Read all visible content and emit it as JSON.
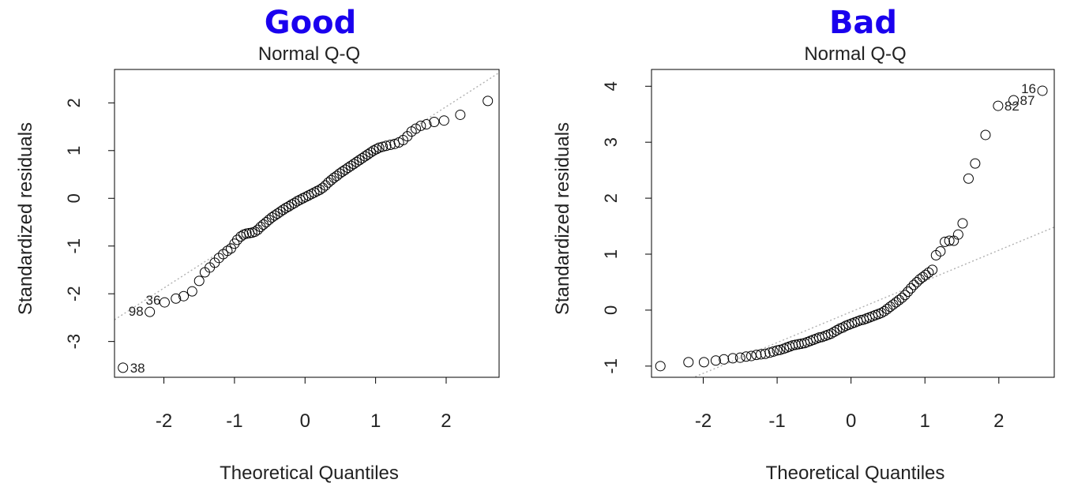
{
  "colors": {
    "heading": "#1a00ee",
    "points": "#000000",
    "refline": "#b0b0b0",
    "text": "#222222"
  },
  "chart_data": [
    {
      "heading": "Good",
      "type": "scatter",
      "title": "Normal Q-Q",
      "xlabel": "Theoretical Quantiles",
      "ylabel": "Standardized residuals",
      "xlim": [
        -2.7,
        2.75
      ],
      "ylim": [
        -3.75,
        2.7
      ],
      "xticks": [
        -2,
        -1,
        0,
        1,
        2
      ],
      "yticks": [
        -3,
        -2,
        -1,
        0,
        1,
        2
      ],
      "reference_line": {
        "intercept": 0.02,
        "slope": 0.95
      },
      "labeled_points": [
        {
          "label": "38",
          "x": -2.58,
          "y": -3.55
        },
        {
          "label": "98",
          "x": -2.2,
          "y": -2.38
        },
        {
          "label": "36",
          "x": -1.99,
          "y": -2.18
        }
      ],
      "points": [
        [
          -2.58,
          -3.55
        ],
        [
          -2.2,
          -2.38
        ],
        [
          -1.99,
          -2.18
        ],
        [
          -1.83,
          -2.1
        ],
        [
          -1.72,
          -2.05
        ],
        [
          -1.6,
          -1.95
        ],
        [
          -1.5,
          -1.73
        ],
        [
          -1.42,
          -1.55
        ],
        [
          -1.35,
          -1.45
        ],
        [
          -1.28,
          -1.35
        ],
        [
          -1.22,
          -1.25
        ],
        [
          -1.16,
          -1.17
        ],
        [
          -1.1,
          -1.1
        ],
        [
          -1.05,
          -1.05
        ],
        [
          -1.0,
          -0.95
        ],
        [
          -0.96,
          -0.87
        ],
        [
          -0.91,
          -0.8
        ],
        [
          -0.87,
          -0.76
        ],
        [
          -0.83,
          -0.74
        ],
        [
          -0.79,
          -0.73
        ],
        [
          -0.75,
          -0.72
        ],
        [
          -0.71,
          -0.7
        ],
        [
          -0.67,
          -0.66
        ],
        [
          -0.63,
          -0.6
        ],
        [
          -0.59,
          -0.55
        ],
        [
          -0.55,
          -0.5
        ],
        [
          -0.51,
          -0.45
        ],
        [
          -0.47,
          -0.4
        ],
        [
          -0.43,
          -0.36
        ],
        [
          -0.39,
          -0.32
        ],
        [
          -0.35,
          -0.28
        ],
        [
          -0.31,
          -0.24
        ],
        [
          -0.27,
          -0.2
        ],
        [
          -0.23,
          -0.17
        ],
        [
          -0.19,
          -0.13
        ],
        [
          -0.15,
          -0.1
        ],
        [
          -0.11,
          -0.06
        ],
        [
          -0.07,
          -0.03
        ],
        [
          -0.03,
          0.0
        ],
        [
          0.01,
          0.03
        ],
        [
          0.05,
          0.06
        ],
        [
          0.09,
          0.09
        ],
        [
          0.13,
          0.12
        ],
        [
          0.17,
          0.15
        ],
        [
          0.21,
          0.18
        ],
        [
          0.25,
          0.22
        ],
        [
          0.29,
          0.27
        ],
        [
          0.33,
          0.33
        ],
        [
          0.37,
          0.38
        ],
        [
          0.41,
          0.43
        ],
        [
          0.45,
          0.47
        ],
        [
          0.49,
          0.52
        ],
        [
          0.53,
          0.56
        ],
        [
          0.57,
          0.6
        ],
        [
          0.61,
          0.64
        ],
        [
          0.65,
          0.68
        ],
        [
          0.69,
          0.72
        ],
        [
          0.73,
          0.76
        ],
        [
          0.77,
          0.8
        ],
        [
          0.81,
          0.84
        ],
        [
          0.85,
          0.88
        ],
        [
          0.89,
          0.92
        ],
        [
          0.93,
          0.96
        ],
        [
          0.97,
          1.0
        ],
        [
          1.01,
          1.03
        ],
        [
          1.05,
          1.06
        ],
        [
          1.1,
          1.08
        ],
        [
          1.15,
          1.1
        ],
        [
          1.21,
          1.12
        ],
        [
          1.27,
          1.14
        ],
        [
          1.33,
          1.17
        ],
        [
          1.39,
          1.22
        ],
        [
          1.45,
          1.3
        ],
        [
          1.51,
          1.4
        ],
        [
          1.57,
          1.46
        ],
        [
          1.64,
          1.52
        ],
        [
          1.72,
          1.55
        ],
        [
          1.83,
          1.6
        ],
        [
          1.97,
          1.63
        ],
        [
          2.2,
          1.75
        ],
        [
          2.59,
          2.04
        ]
      ]
    },
    {
      "heading": "Bad",
      "type": "scatter",
      "title": "Normal Q-Q",
      "xlabel": "Theoretical Quantiles",
      "ylabel": "Standardized residuals",
      "xlim": [
        -2.7,
        2.75
      ],
      "ylim": [
        -1.2,
        4.3
      ],
      "xticks": [
        -2,
        -1,
        0,
        1,
        2
      ],
      "yticks": [
        -1,
        0,
        1,
        2,
        3,
        4
      ],
      "reference_line": {
        "intercept": -0.03,
        "slope": 0.55
      },
      "labeled_points": [
        {
          "label": "16",
          "x": 2.59,
          "y": 3.92
        },
        {
          "label": "87",
          "x": 2.2,
          "y": 3.75
        },
        {
          "label": "82",
          "x": 1.99,
          "y": 3.65
        }
      ],
      "points": [
        [
          -2.58,
          -1.0
        ],
        [
          -2.2,
          -0.93
        ],
        [
          -1.99,
          -0.93
        ],
        [
          -1.83,
          -0.9
        ],
        [
          -1.72,
          -0.88
        ],
        [
          -1.6,
          -0.86
        ],
        [
          -1.5,
          -0.85
        ],
        [
          -1.42,
          -0.83
        ],
        [
          -1.35,
          -0.82
        ],
        [
          -1.28,
          -0.8
        ],
        [
          -1.22,
          -0.79
        ],
        [
          -1.16,
          -0.78
        ],
        [
          -1.1,
          -0.76
        ],
        [
          -1.05,
          -0.74
        ],
        [
          -1.0,
          -0.72
        ],
        [
          -0.96,
          -0.71
        ],
        [
          -0.91,
          -0.69
        ],
        [
          -0.87,
          -0.67
        ],
        [
          -0.83,
          -0.65
        ],
        [
          -0.79,
          -0.63
        ],
        [
          -0.75,
          -0.62
        ],
        [
          -0.71,
          -0.61
        ],
        [
          -0.67,
          -0.6
        ],
        [
          -0.63,
          -0.59
        ],
        [
          -0.59,
          -0.57
        ],
        [
          -0.55,
          -0.55
        ],
        [
          -0.51,
          -0.53
        ],
        [
          -0.47,
          -0.51
        ],
        [
          -0.43,
          -0.49
        ],
        [
          -0.39,
          -0.48
        ],
        [
          -0.35,
          -0.46
        ],
        [
          -0.31,
          -0.44
        ],
        [
          -0.27,
          -0.42
        ],
        [
          -0.23,
          -0.39
        ],
        [
          -0.19,
          -0.36
        ],
        [
          -0.15,
          -0.33
        ],
        [
          -0.11,
          -0.31
        ],
        [
          -0.07,
          -0.28
        ],
        [
          -0.03,
          -0.26
        ],
        [
          0.01,
          -0.24
        ],
        [
          0.05,
          -0.22
        ],
        [
          0.09,
          -0.2
        ],
        [
          0.13,
          -0.18
        ],
        [
          0.17,
          -0.17
        ],
        [
          0.21,
          -0.15
        ],
        [
          0.25,
          -0.13
        ],
        [
          0.29,
          -0.11
        ],
        [
          0.33,
          -0.09
        ],
        [
          0.37,
          -0.07
        ],
        [
          0.41,
          -0.05
        ],
        [
          0.45,
          -0.02
        ],
        [
          0.49,
          0.02
        ],
        [
          0.53,
          0.06
        ],
        [
          0.57,
          0.1
        ],
        [
          0.61,
          0.14
        ],
        [
          0.65,
          0.18
        ],
        [
          0.69,
          0.22
        ],
        [
          0.73,
          0.27
        ],
        [
          0.77,
          0.33
        ],
        [
          0.81,
          0.39
        ],
        [
          0.85,
          0.45
        ],
        [
          0.89,
          0.5
        ],
        [
          0.93,
          0.55
        ],
        [
          0.97,
          0.59
        ],
        [
          1.01,
          0.63
        ],
        [
          1.05,
          0.67
        ],
        [
          1.1,
          0.72
        ],
        [
          1.15,
          0.98
        ],
        [
          1.21,
          1.05
        ],
        [
          1.27,
          1.22
        ],
        [
          1.33,
          1.24
        ],
        [
          1.39,
          1.24
        ],
        [
          1.45,
          1.35
        ],
        [
          1.51,
          1.55
        ],
        [
          1.59,
          2.35
        ],
        [
          1.68,
          2.62
        ],
        [
          1.82,
          3.13
        ],
        [
          1.99,
          3.65
        ],
        [
          2.2,
          3.75
        ],
        [
          2.59,
          3.92
        ]
      ]
    }
  ]
}
